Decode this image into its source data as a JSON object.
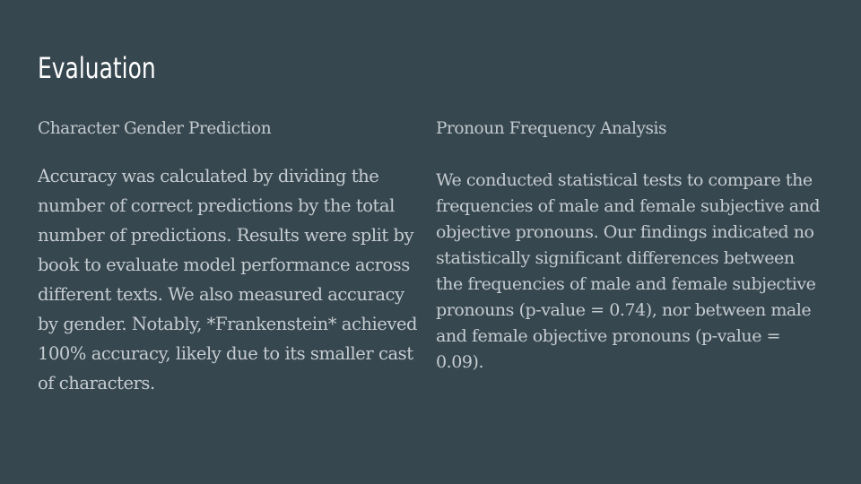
{
  "slide": {
    "title": "Evaluation",
    "left_column": {
      "heading": "Character Gender Prediction",
      "body": "Accuracy was calculated by dividing the number of correct predictions by the total number of predictions. Results were split by book to evaluate model performance across different texts. We also measured accuracy by gender. Notably, *Frankenstein* achieved 100% accuracy, likely due to its smaller cast of characters."
    },
    "right_column": {
      "heading": "Pronoun Frequency Analysis",
      "body": "We conducted statistical tests to compare the frequencies of male and female subjective and objective pronouns. Our findings indicated no statistically significant differences between the frequencies of male and female subjective pronouns (p-value = 0.74), nor between male and female objective pronouns (p-value = 0.09)."
    }
  },
  "colors": {
    "background": "#37474f",
    "title": "#ffffff",
    "body_text": "#c5ccd1"
  }
}
